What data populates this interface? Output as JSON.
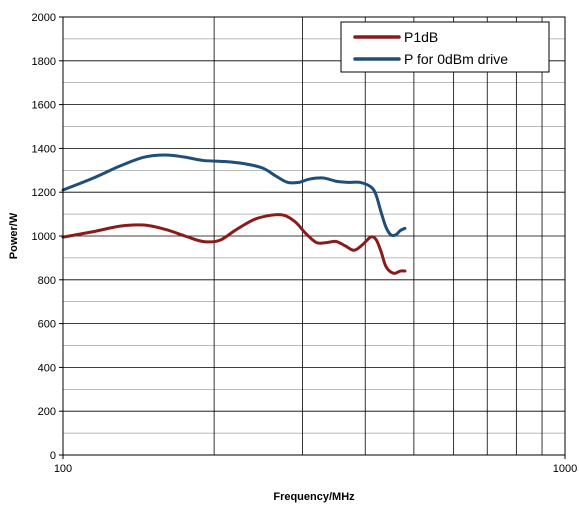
{
  "chart_data": {
    "type": "line",
    "title": "",
    "xlabel": "Frequency/MHz",
    "ylabel": "Power/W",
    "xscale": "log",
    "xlim": [
      100,
      1000
    ],
    "ylim": [
      0,
      2000
    ],
    "grid": true,
    "legend_position": "top-right",
    "x_ticks": [
      {
        "value": 100,
        "label": "100"
      },
      {
        "value": 1000,
        "label": "1000"
      }
    ],
    "y_ticks": [
      {
        "value": 0,
        "label": "0"
      },
      {
        "value": 200,
        "label": "200"
      },
      {
        "value": 400,
        "label": "400"
      },
      {
        "value": 600,
        "label": "600"
      },
      {
        "value": 800,
        "label": "800"
      },
      {
        "value": 1000,
        "label": "1000"
      },
      {
        "value": 1200,
        "label": "1200"
      },
      {
        "value": 1400,
        "label": "1400"
      },
      {
        "value": 1600,
        "label": "1600"
      },
      {
        "value": 1800,
        "label": "1800"
      },
      {
        "value": 2000,
        "label": "2000"
      }
    ],
    "y_minor_step": 100,
    "series": [
      {
        "name": "P1dB",
        "color": "#8b1a1a",
        "points": [
          [
            100,
            995
          ],
          [
            115,
            1020
          ],
          [
            130,
            1045
          ],
          [
            145,
            1050
          ],
          [
            160,
            1030
          ],
          [
            175,
            1000
          ],
          [
            190,
            975
          ],
          [
            205,
            980
          ],
          [
            220,
            1025
          ],
          [
            240,
            1075
          ],
          [
            260,
            1095
          ],
          [
            275,
            1095
          ],
          [
            290,
            1065
          ],
          [
            305,
            1010
          ],
          [
            320,
            970
          ],
          [
            335,
            970
          ],
          [
            350,
            975
          ],
          [
            365,
            955
          ],
          [
            380,
            935
          ],
          [
            395,
            960
          ],
          [
            410,
            995
          ],
          [
            420,
            985
          ],
          [
            430,
            930
          ],
          [
            440,
            860
          ],
          [
            455,
            830
          ],
          [
            470,
            840
          ],
          [
            480,
            840
          ]
        ]
      },
      {
        "name": "P for 0dBm drive",
        "color": "#1f4e79",
        "points": [
          [
            100,
            1210
          ],
          [
            115,
            1265
          ],
          [
            130,
            1320
          ],
          [
            145,
            1360
          ],
          [
            160,
            1370
          ],
          [
            175,
            1360
          ],
          [
            190,
            1345
          ],
          [
            210,
            1340
          ],
          [
            230,
            1330
          ],
          [
            250,
            1310
          ],
          [
            265,
            1275
          ],
          [
            280,
            1245
          ],
          [
            295,
            1245
          ],
          [
            310,
            1260
          ],
          [
            330,
            1265
          ],
          [
            350,
            1250
          ],
          [
            370,
            1245
          ],
          [
            390,
            1245
          ],
          [
            410,
            1225
          ],
          [
            420,
            1190
          ],
          [
            430,
            1110
          ],
          [
            440,
            1040
          ],
          [
            450,
            1005
          ],
          [
            460,
            1005
          ],
          [
            470,
            1025
          ],
          [
            480,
            1035
          ]
        ]
      }
    ]
  }
}
